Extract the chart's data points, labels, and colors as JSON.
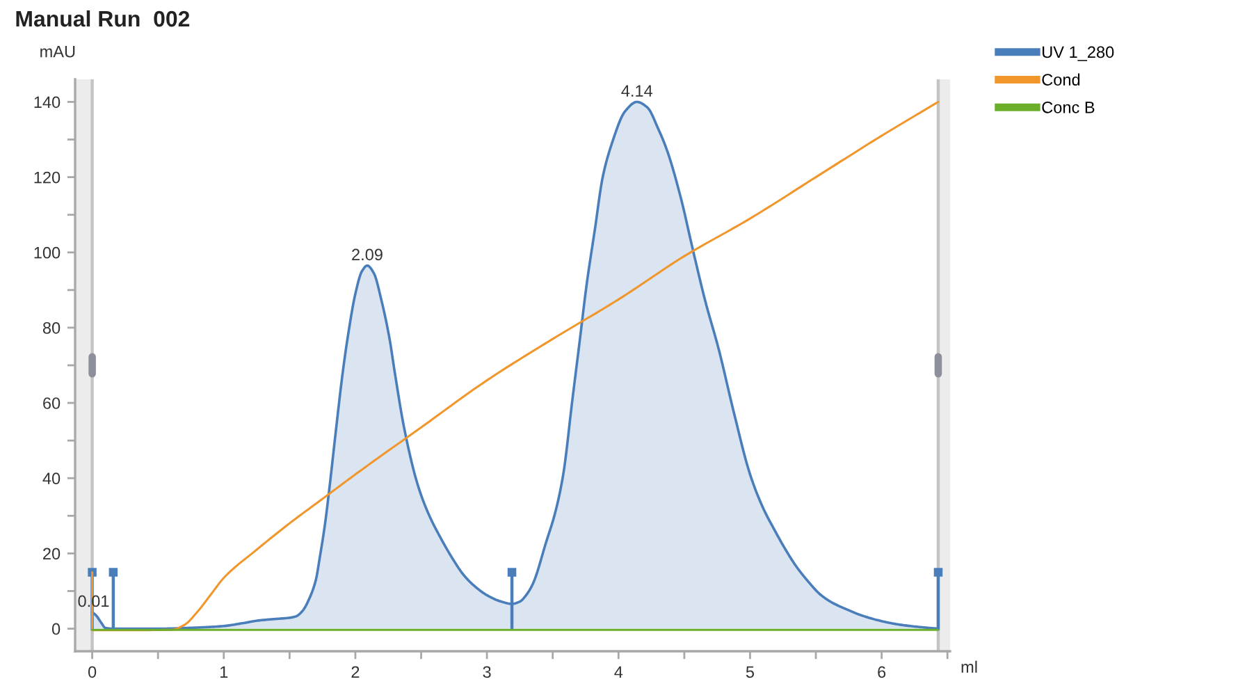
{
  "chart_data": {
    "type": "line",
    "title": "Manual Run  002",
    "xlabel": "ml",
    "ylabel": "mAU",
    "xlim": [
      -0.13,
      6.52
    ],
    "xticks": [
      0,
      {
        "value": 0.5,
        "label": null
      },
      1,
      {
        "value": 1.5,
        "label": null
      },
      2,
      {
        "value": 2.5,
        "label": null
      },
      3,
      {
        "value": 3.5,
        "label": null
      },
      4,
      {
        "value": 4.5,
        "label": null
      },
      5,
      {
        "value": 5.5,
        "label": null
      },
      6,
      {
        "value": 6.5,
        "label": null
      }
    ],
    "ylim": [
      -6,
      146
    ],
    "yticks": [
      0,
      {
        "value": 10,
        "label": null
      },
      20,
      {
        "value": 30,
        "label": null
      },
      40,
      {
        "value": 50,
        "label": null
      },
      60,
      {
        "value": 70,
        "label": null
      },
      80,
      {
        "value": 90,
        "label": null
      },
      100,
      {
        "value": 110,
        "label": null
      },
      120,
      {
        "value": 130,
        "label": null
      },
      140
    ],
    "legend": "top right",
    "series": [
      {
        "type": "lollipop",
        "color": "#4a7ebb",
        "x": [
          0,
          0.16,
          3.19,
          6.43
        ],
        "values": [
          15,
          15,
          15,
          15
        ]
      },
      {
        "name": "UV 1_280",
        "type": "area",
        "color": "#4a7ebb",
        "x": [
          0,
          0.03,
          0.07,
          0.1,
          0.16,
          0.5,
          0.8,
          1.0,
          1.15,
          1.27,
          1.4,
          1.5,
          1.55,
          1.6,
          1.65,
          1.7,
          1.73,
          1.77,
          1.8,
          1.85,
          1.9,
          1.94,
          2.0,
          2.05,
          2.09,
          2.14,
          2.2,
          2.26,
          2.3,
          2.37,
          2.47,
          2.55,
          2.65,
          2.75,
          2.82,
          2.9,
          3.0,
          3.1,
          3.19,
          3.25,
          3.3,
          3.35,
          3.45,
          3.52,
          3.58,
          3.65,
          3.7,
          3.76,
          3.82,
          3.88,
          3.95,
          4.05,
          4.14,
          4.22,
          4.3,
          4.37,
          4.47,
          4.57,
          4.66,
          4.76,
          4.88,
          5.0,
          5.1,
          5.18,
          5.27,
          5.35,
          5.45,
          5.53,
          5.62,
          5.71,
          5.85,
          6.0,
          6.15,
          6.3,
          6.43
        ],
        "values": [
          4.4,
          3.5,
          1.5,
          0.2,
          0,
          0,
          0.3,
          0.7,
          1.5,
          2.2,
          2.6,
          2.9,
          3.3,
          4.8,
          8,
          13,
          19,
          28,
          36.5,
          52,
          67,
          77,
          89,
          95,
          96.5,
          94.5,
          87,
          77,
          68,
          53.5,
          38.7,
          31,
          24,
          18,
          14.4,
          11.5,
          8.9,
          7.3,
          6.6,
          7.2,
          9,
          12,
          23,
          31,
          41,
          61,
          75,
          92,
          106,
          120,
          129,
          137.5,
          140,
          138.5,
          133,
          127,
          115,
          100,
          87,
          74.5,
          57,
          41,
          32,
          26.6,
          21,
          16.6,
          12.2,
          9.2,
          7,
          5.5,
          3.5,
          2,
          1,
          0.4,
          0
        ]
      },
      {
        "name": "Cond",
        "color": "#f0962a",
        "x": [
          0,
          0,
          0.3,
          0.6,
          0.7,
          0.8,
          0.9,
          1.0,
          1.25,
          1.5,
          1.75,
          2.0,
          2.5,
          3.0,
          3.5,
          4.0,
          4.5,
          5.0,
          5.5,
          6.0,
          6.43
        ],
        "values": [
          15,
          -0.4,
          -0.4,
          -0.3,
          1.0,
          4.5,
          9,
          13.5,
          21,
          28,
          34.5,
          41,
          53.5,
          66,
          77,
          87.5,
          99,
          109,
          120,
          131,
          140
        ]
      },
      {
        "name": "Conc B",
        "color": "#6aae2a",
        "x": [
          0,
          6.43
        ],
        "values": [
          -0.3,
          -0.3
        ]
      }
    ],
    "bands": [
      {
        "axis": "x",
        "from": -0.13,
        "to": 0,
        "color": "#ececec"
      },
      {
        "axis": "x",
        "from": 6.43,
        "to": 6.52,
        "color": "#ececec"
      }
    ],
    "ref_lines": [
      {
        "axis": "x",
        "value": 0,
        "color": "#c4c4c4"
      },
      {
        "axis": "x",
        "value": 6.43,
        "color": "#c4c4c4"
      }
    ],
    "annotations": [
      {
        "text": "0.01",
        "x": 0.01,
        "y": 4.4
      },
      {
        "text": "2.09",
        "x": 2.09,
        "y": 96.5
      },
      {
        "text": "4.14",
        "x": 4.14,
        "y": 140
      }
    ]
  }
}
